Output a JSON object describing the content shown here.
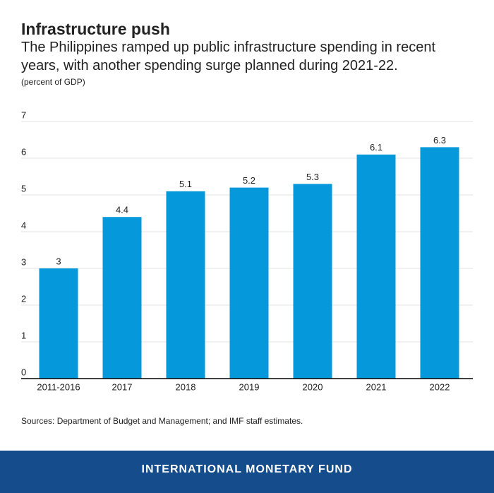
{
  "chart_data": {
    "type": "bar",
    "title": "Infrastructure push",
    "subtitle": "The Philippines ramped up public infrastructure spending in recent years, with another spending surge planned during 2021-22.",
    "y_label": "(percent of GDP)",
    "categories": [
      "2011-2016",
      "2017",
      "2018",
      "2019",
      "2020",
      "2021",
      "2022"
    ],
    "values": [
      3,
      4.4,
      5.1,
      5.2,
      5.3,
      6.1,
      6.3
    ],
    "color": "#0599dc",
    "ylim": [
      0,
      7
    ],
    "yticks": [
      0,
      1,
      2,
      3,
      4,
      5,
      6,
      7
    ],
    "grid": true,
    "source": "Sources:  Department of Budget and Management; and IMF staff estimates."
  },
  "footer": {
    "text": "INTERNATIONAL MONETARY FUND"
  }
}
